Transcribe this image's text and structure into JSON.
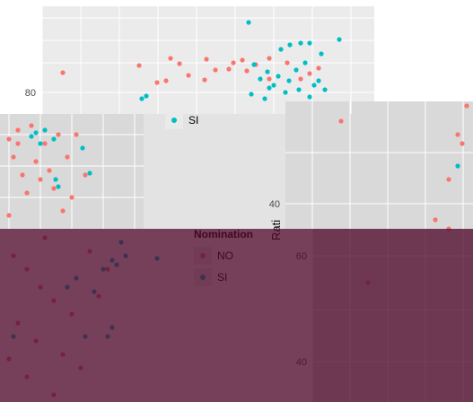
{
  "chart_data": {
    "type": "scatter",
    "title": "",
    "xlabel": "",
    "ylabel": "Rati",
    "legend": {
      "title": "Nomination",
      "placement": "right",
      "entries": [
        {
          "label": "NO",
          "color": "#F8766D"
        },
        {
          "label": "SI",
          "color": "#00BFC4"
        }
      ]
    },
    "axes": [
      {
        "name": "top-panel",
        "ylim": [
          60,
          105
        ],
        "yticks": [
          80
        ]
      },
      {
        "name": "right-panel",
        "ylim": [
          30,
          82
        ],
        "yticks": [
          40,
          60
        ]
      }
    ],
    "grid": true,
    "series": [
      {
        "name": "NO",
        "color": "#F8766D",
        "points": [
          [
            70,
            81
          ],
          [
            155,
            73
          ],
          [
            190,
            65
          ],
          [
            210,
            84
          ],
          [
            228,
            89
          ],
          [
            240,
            78
          ],
          [
            255,
            77
          ],
          [
            275,
            79
          ],
          [
            285,
            72
          ],
          [
            200,
            71
          ],
          [
            260,
            70
          ],
          [
            230,
            66
          ],
          [
            300,
            88
          ],
          [
            335,
            88
          ],
          [
            345,
            82
          ],
          [
            355,
            76
          ],
          [
            300,
            65
          ],
          [
            320,
            70
          ],
          [
            270,
            67
          ],
          [
            185,
            90
          ],
          [
            175,
            92
          ],
          [
            10,
            155
          ],
          [
            20,
            145
          ],
          [
            35,
            140
          ],
          [
            50,
            160
          ],
          [
            65,
            150
          ],
          [
            75,
            175
          ],
          [
            55,
            190
          ],
          [
            40,
            180
          ],
          [
            25,
            195
          ],
          [
            15,
            175
          ],
          [
            60,
            210
          ],
          [
            80,
            220
          ],
          [
            70,
            235
          ],
          [
            95,
            195
          ],
          [
            30,
            215
          ],
          [
            10,
            240
          ],
          [
            45,
            200
          ],
          [
            85,
            150
          ],
          [
            20,
            160
          ],
          [
            380,
            135
          ],
          [
            510,
            150
          ],
          [
            515,
            160
          ],
          [
            500,
            200
          ],
          [
            520,
            118
          ],
          [
            485,
            245
          ],
          [
            500,
            255
          ],
          [
            410,
            315
          ],
          [
            15,
            285
          ],
          [
            30,
            300
          ],
          [
            45,
            320
          ],
          [
            60,
            335
          ],
          [
            80,
            350
          ],
          [
            20,
            360
          ],
          [
            40,
            380
          ],
          [
            10,
            400
          ],
          [
            70,
            395
          ],
          [
            90,
            410
          ],
          [
            110,
            330
          ],
          [
            120,
            300
          ],
          [
            100,
            280
          ],
          [
            50,
            265
          ],
          [
            30,
            420
          ],
          [
            60,
            440
          ]
        ]
      },
      {
        "name": "SI",
        "color": "#00BFC4",
        "points": [
          [
            277,
            25
          ],
          [
            313,
            55
          ],
          [
            323,
            50
          ],
          [
            335,
            48
          ],
          [
            345,
            48
          ],
          [
            358,
            60
          ],
          [
            378,
            44
          ],
          [
            283,
            72
          ],
          [
            290,
            88
          ],
          [
            298,
            80
          ],
          [
            305,
            95
          ],
          [
            310,
            85
          ],
          [
            322,
            90
          ],
          [
            330,
            78
          ],
          [
            340,
            70
          ],
          [
            350,
            95
          ],
          [
            355,
            90
          ],
          [
            300,
            98
          ],
          [
            318,
            103
          ],
          [
            333,
            100
          ],
          [
            345,
            108
          ],
          [
            362,
            100
          ],
          [
            280,
            105
          ],
          [
            295,
            110
          ],
          [
            163,
            107
          ],
          [
            158,
            110
          ],
          [
            40,
            148
          ],
          [
            50,
            145
          ],
          [
            60,
            155
          ],
          [
            45,
            160
          ],
          [
            35,
            152
          ],
          [
            92,
            165
          ],
          [
            100,
            193
          ],
          [
            62,
            200
          ],
          [
            65,
            208
          ],
          [
            510,
            185
          ],
          [
            130,
            295
          ],
          [
            115,
            300
          ],
          [
            125,
            290
          ],
          [
            75,
            320
          ],
          [
            85,
            310
          ],
          [
            95,
            375
          ],
          [
            125,
            365
          ],
          [
            135,
            270
          ],
          [
            140,
            285
          ],
          [
            15,
            375
          ],
          [
            105,
            325
          ],
          [
            175,
            288
          ],
          [
            120,
            375
          ]
        ]
      }
    ]
  }
}
